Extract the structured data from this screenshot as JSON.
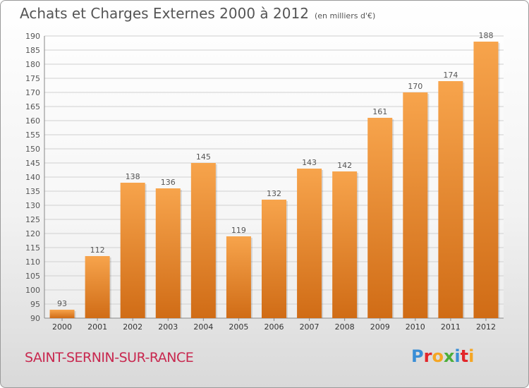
{
  "title": "Achats et Charges Externes 2000 à 2012",
  "subtitle": "(en milliers d'€)",
  "commune": "SAINT-SERNIN-SUR-RANCE",
  "logo": {
    "text": "Proxiti",
    "letters": [
      {
        "ch": "P",
        "color": "#3a8ed6"
      },
      {
        "ch": "r",
        "color": "#e2262a"
      },
      {
        "ch": "o",
        "color": "#f5a623"
      },
      {
        "ch": "x",
        "color": "#4cae3a"
      },
      {
        "ch": "i",
        "color": "#3a8ed6"
      },
      {
        "ch": "t",
        "color": "#e2262a"
      },
      {
        "ch": "i",
        "color": "#f5a623"
      }
    ]
  },
  "colors": {
    "bar_top": "#f7a44c",
    "bar_bottom": "#d06c16",
    "grid": "#d0d0d0",
    "text": "#555555"
  },
  "chart_data": {
    "type": "bar",
    "categories": [
      "2000",
      "2001",
      "2002",
      "2003",
      "2004",
      "2005",
      "2006",
      "2007",
      "2008",
      "2009",
      "2010",
      "2011",
      "2012"
    ],
    "values": [
      93,
      112,
      138,
      136,
      145,
      119,
      132,
      143,
      142,
      161,
      170,
      174,
      188
    ],
    "ylim": [
      90,
      190
    ],
    "yticks": [
      90,
      95,
      100,
      105,
      110,
      115,
      120,
      125,
      130,
      135,
      140,
      145,
      150,
      155,
      160,
      165,
      170,
      175,
      180,
      185,
      190
    ],
    "grid": true
  }
}
